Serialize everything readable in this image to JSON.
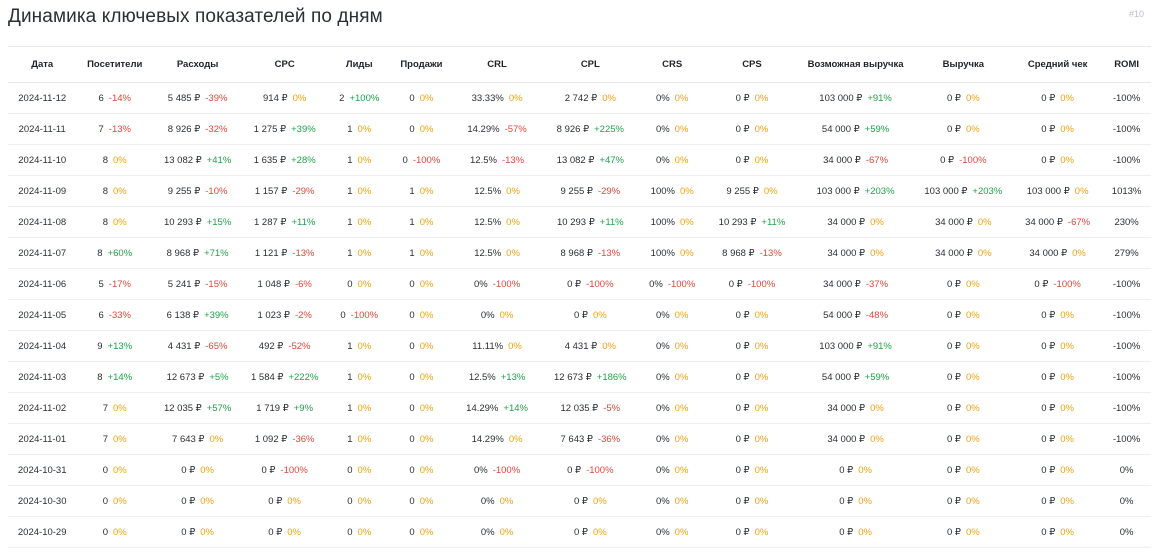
{
  "header": {
    "title": "Динамика ключевых показателей по дням",
    "widget_tag": "#10"
  },
  "colors": {
    "positive": "#1fa34a",
    "negative": "#e0473a",
    "zero": "#f1a20b"
  },
  "columns": [
    {
      "key": "date",
      "label": "Дата",
      "width": 66
    },
    {
      "key": "visitors",
      "label": "Посетители",
      "width": 74
    },
    {
      "key": "costs",
      "label": "Расходы",
      "width": 86
    },
    {
      "key": "cpc",
      "label": "CPC",
      "width": 82
    },
    {
      "key": "leads",
      "label": "Лиды",
      "width": 62
    },
    {
      "key": "sales",
      "label": "Продажи",
      "width": 58
    },
    {
      "key": "crl",
      "label": "CRL",
      "width": 88
    },
    {
      "key": "cpl",
      "label": "CPL",
      "width": 92
    },
    {
      "key": "crs",
      "label": "CRS",
      "width": 66
    },
    {
      "key": "cps",
      "label": "CPS",
      "width": 88
    },
    {
      "key": "possible_revenue",
      "label": "Возможная выручка",
      "width": 112
    },
    {
      "key": "revenue",
      "label": "Выручка",
      "width": 96
    },
    {
      "key": "avg_check",
      "label": "Средний чек",
      "width": 86
    },
    {
      "key": "romi",
      "label": "ROMI",
      "width": 47
    }
  ],
  "rows": [
    {
      "date": "2024-11-12",
      "visitors": [
        "6",
        "-14%"
      ],
      "costs": [
        "5 485 ₽",
        "-39%"
      ],
      "cpc": [
        "914 ₽",
        "0%"
      ],
      "leads": [
        "2",
        "+100%"
      ],
      "sales": [
        "0",
        "0%"
      ],
      "crl": [
        "33.33%",
        "0%"
      ],
      "cpl": [
        "2 742 ₽",
        "0%"
      ],
      "crs": [
        "0%",
        "0%"
      ],
      "cps": [
        "0 ₽",
        "0%"
      ],
      "possible_revenue": [
        "103 000 ₽",
        "+91%"
      ],
      "revenue": [
        "0 ₽",
        "0%"
      ],
      "avg_check": [
        "0 ₽",
        "0%"
      ],
      "romi": [
        "-100%",
        ""
      ]
    },
    {
      "date": "2024-11-11",
      "visitors": [
        "7",
        "-13%"
      ],
      "costs": [
        "8 926 ₽",
        "-32%"
      ],
      "cpc": [
        "1 275 ₽",
        "+39%"
      ],
      "leads": [
        "1",
        "0%"
      ],
      "sales": [
        "0",
        "0%"
      ],
      "crl": [
        "14.29%",
        "-57%"
      ],
      "cpl": [
        "8 926 ₽",
        "+225%"
      ],
      "crs": [
        "0%",
        "0%"
      ],
      "cps": [
        "0 ₽",
        "0%"
      ],
      "possible_revenue": [
        "54 000 ₽",
        "+59%"
      ],
      "revenue": [
        "0 ₽",
        "0%"
      ],
      "avg_check": [
        "0 ₽",
        "0%"
      ],
      "romi": [
        "-100%",
        ""
      ]
    },
    {
      "date": "2024-11-10",
      "visitors": [
        "8",
        "0%"
      ],
      "costs": [
        "13 082 ₽",
        "+41%"
      ],
      "cpc": [
        "1 635 ₽",
        "+28%"
      ],
      "leads": [
        "1",
        "0%"
      ],
      "sales": [
        "0",
        "-100%"
      ],
      "crl": [
        "12.5%",
        "-13%"
      ],
      "cpl": [
        "13 082 ₽",
        "+47%"
      ],
      "crs": [
        "0%",
        "0%"
      ],
      "cps": [
        "0 ₽",
        "0%"
      ],
      "possible_revenue": [
        "34 000 ₽",
        "-67%"
      ],
      "revenue": [
        "0 ₽",
        "-100%"
      ],
      "avg_check": [
        "0 ₽",
        "0%"
      ],
      "romi": [
        "-100%",
        ""
      ]
    },
    {
      "date": "2024-11-09",
      "visitors": [
        "8",
        "0%"
      ],
      "costs": [
        "9 255 ₽",
        "-10%"
      ],
      "cpc": [
        "1 157 ₽",
        "-29%"
      ],
      "leads": [
        "1",
        "0%"
      ],
      "sales": [
        "1",
        "0%"
      ],
      "crl": [
        "12.5%",
        "0%"
      ],
      "cpl": [
        "9 255 ₽",
        "-29%"
      ],
      "crs": [
        "100%",
        "0%"
      ],
      "cps": [
        "9 255 ₽",
        "0%"
      ],
      "possible_revenue": [
        "103 000 ₽",
        "+203%"
      ],
      "revenue": [
        "103 000 ₽",
        "+203%"
      ],
      "avg_check": [
        "103 000 ₽",
        "0%"
      ],
      "romi": [
        "1013%",
        ""
      ]
    },
    {
      "date": "2024-11-08",
      "visitors": [
        "8",
        "0%"
      ],
      "costs": [
        "10 293 ₽",
        "+15%"
      ],
      "cpc": [
        "1 287 ₽",
        "+11%"
      ],
      "leads": [
        "1",
        "0%"
      ],
      "sales": [
        "1",
        "0%"
      ],
      "crl": [
        "12.5%",
        "0%"
      ],
      "cpl": [
        "10 293 ₽",
        "+11%"
      ],
      "crs": [
        "100%",
        "0%"
      ],
      "cps": [
        "10 293 ₽",
        "+11%"
      ],
      "possible_revenue": [
        "34 000 ₽",
        "0%"
      ],
      "revenue": [
        "34 000 ₽",
        "0%"
      ],
      "avg_check": [
        "34 000 ₽",
        "-67%"
      ],
      "romi": [
        "230%",
        ""
      ]
    },
    {
      "date": "2024-11-07",
      "visitors": [
        "8",
        "+60%"
      ],
      "costs": [
        "8 968 ₽",
        "+71%"
      ],
      "cpc": [
        "1 121 ₽",
        "-13%"
      ],
      "leads": [
        "1",
        "0%"
      ],
      "sales": [
        "1",
        "0%"
      ],
      "crl": [
        "12.5%",
        "0%"
      ],
      "cpl": [
        "8 968 ₽",
        "-13%"
      ],
      "crs": [
        "100%",
        "0%"
      ],
      "cps": [
        "8 968 ₽",
        "-13%"
      ],
      "possible_revenue": [
        "34 000 ₽",
        "0%"
      ],
      "revenue": [
        "34 000 ₽",
        "0%"
      ],
      "avg_check": [
        "34 000 ₽",
        "0%"
      ],
      "romi": [
        "279%",
        ""
      ]
    },
    {
      "date": "2024-11-06",
      "visitors": [
        "5",
        "-17%"
      ],
      "costs": [
        "5 241 ₽",
        "-15%"
      ],
      "cpc": [
        "1 048 ₽",
        "-6%"
      ],
      "leads": [
        "0",
        "0%"
      ],
      "sales": [
        "0",
        "0%"
      ],
      "crl": [
        "0%",
        "-100%"
      ],
      "cpl": [
        "0 ₽",
        "-100%"
      ],
      "crs": [
        "0%",
        "-100%"
      ],
      "cps": [
        "0 ₽",
        "-100%"
      ],
      "possible_revenue": [
        "34 000 ₽",
        "-37%"
      ],
      "revenue": [
        "0 ₽",
        "0%"
      ],
      "avg_check": [
        "0 ₽",
        "-100%"
      ],
      "romi": [
        "-100%",
        ""
      ]
    },
    {
      "date": "2024-11-05",
      "visitors": [
        "6",
        "-33%"
      ],
      "costs": [
        "6 138 ₽",
        "+39%"
      ],
      "cpc": [
        "1 023 ₽",
        "-2%"
      ],
      "leads": [
        "0",
        "-100%"
      ],
      "sales": [
        "0",
        "0%"
      ],
      "crl": [
        "0%",
        "0%"
      ],
      "cpl": [
        "0 ₽",
        "0%"
      ],
      "crs": [
        "0%",
        "0%"
      ],
      "cps": [
        "0 ₽",
        "0%"
      ],
      "possible_revenue": [
        "54 000 ₽",
        "-48%"
      ],
      "revenue": [
        "0 ₽",
        "0%"
      ],
      "avg_check": [
        "0 ₽",
        "0%"
      ],
      "romi": [
        "-100%",
        ""
      ]
    },
    {
      "date": "2024-11-04",
      "visitors": [
        "9",
        "+13%"
      ],
      "costs": [
        "4 431 ₽",
        "-65%"
      ],
      "cpc": [
        "492 ₽",
        "-52%"
      ],
      "leads": [
        "1",
        "0%"
      ],
      "sales": [
        "0",
        "0%"
      ],
      "crl": [
        "11.11%",
        "0%"
      ],
      "cpl": [
        "4 431 ₽",
        "0%"
      ],
      "crs": [
        "0%",
        "0%"
      ],
      "cps": [
        "0 ₽",
        "0%"
      ],
      "possible_revenue": [
        "103 000 ₽",
        "+91%"
      ],
      "revenue": [
        "0 ₽",
        "0%"
      ],
      "avg_check": [
        "0 ₽",
        "0%"
      ],
      "romi": [
        "-100%",
        ""
      ]
    },
    {
      "date": "2024-11-03",
      "visitors": [
        "8",
        "+14%"
      ],
      "costs": [
        "12 673 ₽",
        "+5%"
      ],
      "cpc": [
        "1 584 ₽",
        "+222%"
      ],
      "leads": [
        "1",
        "0%"
      ],
      "sales": [
        "0",
        "0%"
      ],
      "crl": [
        "12.5%",
        "+13%"
      ],
      "cpl": [
        "12 673 ₽",
        "+186%"
      ],
      "crs": [
        "0%",
        "0%"
      ],
      "cps": [
        "0 ₽",
        "0%"
      ],
      "possible_revenue": [
        "54 000 ₽",
        "+59%"
      ],
      "revenue": [
        "0 ₽",
        "0%"
      ],
      "avg_check": [
        "0 ₽",
        "0%"
      ],
      "romi": [
        "-100%",
        ""
      ]
    },
    {
      "date": "2024-11-02",
      "visitors": [
        "7",
        "0%"
      ],
      "costs": [
        "12 035 ₽",
        "+57%"
      ],
      "cpc": [
        "1 719 ₽",
        "+9%"
      ],
      "leads": [
        "1",
        "0%"
      ],
      "sales": [
        "0",
        "0%"
      ],
      "crl": [
        "14.29%",
        "+14%"
      ],
      "cpl": [
        "12 035 ₽",
        "-5%"
      ],
      "crs": [
        "0%",
        "0%"
      ],
      "cps": [
        "0 ₽",
        "0%"
      ],
      "possible_revenue": [
        "34 000 ₽",
        "0%"
      ],
      "revenue": [
        "0 ₽",
        "0%"
      ],
      "avg_check": [
        "0 ₽",
        "0%"
      ],
      "romi": [
        "-100%",
        ""
      ]
    },
    {
      "date": "2024-11-01",
      "visitors": [
        "7",
        "0%"
      ],
      "costs": [
        "7 643 ₽",
        "0%"
      ],
      "cpc": [
        "1 092 ₽",
        "-36%"
      ],
      "leads": [
        "1",
        "0%"
      ],
      "sales": [
        "0",
        "0%"
      ],
      "crl": [
        "14.29%",
        "0%"
      ],
      "cpl": [
        "7 643 ₽",
        "-36%"
      ],
      "crs": [
        "0%",
        "0%"
      ],
      "cps": [
        "0 ₽",
        "0%"
      ],
      "possible_revenue": [
        "34 000 ₽",
        "0%"
      ],
      "revenue": [
        "0 ₽",
        "0%"
      ],
      "avg_check": [
        "0 ₽",
        "0%"
      ],
      "romi": [
        "-100%",
        ""
      ]
    },
    {
      "date": "2024-10-31",
      "visitors": [
        "0",
        "0%"
      ],
      "costs": [
        "0 ₽",
        "0%"
      ],
      "cpc": [
        "0 ₽",
        "-100%"
      ],
      "leads": [
        "0",
        "0%"
      ],
      "sales": [
        "0",
        "0%"
      ],
      "crl": [
        "0%",
        "-100%"
      ],
      "cpl": [
        "0 ₽",
        "-100%"
      ],
      "crs": [
        "0%",
        "0%"
      ],
      "cps": [
        "0 ₽",
        "0%"
      ],
      "possible_revenue": [
        "0 ₽",
        "0%"
      ],
      "revenue": [
        "0 ₽",
        "0%"
      ],
      "avg_check": [
        "0 ₽",
        "0%"
      ],
      "romi": [
        "0%",
        ""
      ]
    },
    {
      "date": "2024-10-30",
      "visitors": [
        "0",
        "0%"
      ],
      "costs": [
        "0 ₽",
        "0%"
      ],
      "cpc": [
        "0 ₽",
        "0%"
      ],
      "leads": [
        "0",
        "0%"
      ],
      "sales": [
        "0",
        "0%"
      ],
      "crl": [
        "0%",
        "0%"
      ],
      "cpl": [
        "0 ₽",
        "0%"
      ],
      "crs": [
        "0%",
        "0%"
      ],
      "cps": [
        "0 ₽",
        "0%"
      ],
      "possible_revenue": [
        "0 ₽",
        "0%"
      ],
      "revenue": [
        "0 ₽",
        "0%"
      ],
      "avg_check": [
        "0 ₽",
        "0%"
      ],
      "romi": [
        "0%",
        ""
      ]
    },
    {
      "date": "2024-10-29",
      "visitors": [
        "0",
        "0%"
      ],
      "costs": [
        "0 ₽",
        "0%"
      ],
      "cpc": [
        "0 ₽",
        "0%"
      ],
      "leads": [
        "0",
        "0%"
      ],
      "sales": [
        "0",
        "0%"
      ],
      "crl": [
        "0%",
        "0%"
      ],
      "cpl": [
        "0 ₽",
        "0%"
      ],
      "crs": [
        "0%",
        "0%"
      ],
      "cps": [
        "0 ₽",
        "0%"
      ],
      "possible_revenue": [
        "0 ₽",
        "0%"
      ],
      "revenue": [
        "0 ₽",
        "0%"
      ],
      "avg_check": [
        "0 ₽",
        "0%"
      ],
      "romi": [
        "0%",
        ""
      ]
    }
  ]
}
